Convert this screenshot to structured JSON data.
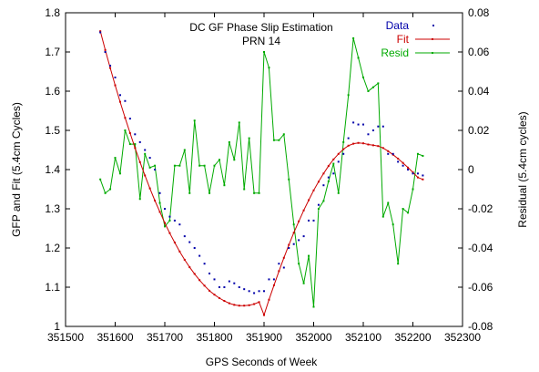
{
  "chart_data": {
    "type": "line",
    "title": "DC GF Phase Slip Estimation",
    "subtitle": "PRN 14",
    "xlabel": "GPS Seconds of Week",
    "ylabel": "GFP and Fit (5.4cm Cycles)",
    "y2label": "Residual (5.4cm cycles)",
    "xlim": [
      351500,
      352300
    ],
    "ylim": [
      1.0,
      1.8
    ],
    "y2lim": [
      -0.08,
      0.08
    ],
    "x_ticks": [
      "351500",
      "351600",
      "351700",
      "351800",
      "351900",
      "352000",
      "352100",
      "352200",
      "352300"
    ],
    "y_ticks": [
      "1",
      "1.1",
      "1.2",
      "1.3",
      "1.4",
      "1.5",
      "1.6",
      "1.7",
      "1.8"
    ],
    "y2_ticks": [
      "-0.08",
      "-0.06",
      "-0.04",
      "-0.02",
      "0",
      "0.02",
      "0.04",
      "0.06",
      "0.08"
    ],
    "grid": false,
    "legend_position": "top-right",
    "colors": {
      "data": "#0000aa",
      "fit": "#cc0000",
      "resid": "#00aa00"
    },
    "series": [
      {
        "name": "Data",
        "axis": "left",
        "style": "points",
        "x": [
          351570,
          351580,
          351590,
          351600,
          351610,
          351620,
          351630,
          351640,
          351650,
          351660,
          351670,
          351680,
          351690,
          351700,
          351710,
          351720,
          351730,
          351740,
          351750,
          351760,
          351770,
          351780,
          351790,
          351800,
          351810,
          351820,
          351830,
          351840,
          351850,
          351860,
          351870,
          351880,
          351890,
          351900,
          351910,
          351920,
          351930,
          351940,
          351950,
          351960,
          351970,
          351980,
          351990,
          352000,
          352010,
          352020,
          352030,
          352040,
          352050,
          352060,
          352070,
          352080,
          352090,
          352100,
          352110,
          352120,
          352130,
          352140,
          352150,
          352160,
          352170,
          352180,
          352190,
          352200,
          352210,
          352220
        ],
        "values": [
          1.75,
          1.7,
          1.665,
          1.635,
          1.59,
          1.575,
          1.53,
          1.49,
          1.47,
          1.45,
          1.43,
          1.4,
          1.34,
          1.3,
          1.28,
          1.27,
          1.26,
          1.23,
          1.215,
          1.2,
          1.18,
          1.16,
          1.135,
          1.12,
          1.1,
          1.1,
          1.115,
          1.11,
          1.1,
          1.095,
          1.09,
          1.085,
          1.09,
          1.09,
          1.12,
          1.12,
          1.16,
          1.15,
          1.2,
          1.21,
          1.22,
          1.23,
          1.27,
          1.27,
          1.31,
          1.36,
          1.38,
          1.39,
          1.42,
          1.44,
          1.48,
          1.52,
          1.515,
          1.515,
          1.49,
          1.5,
          1.51,
          1.51,
          1.44,
          1.44,
          1.42,
          1.41,
          1.4,
          1.39,
          1.39,
          1.385
        ]
      },
      {
        "name": "Fit",
        "axis": "left",
        "style": "line-points",
        "x": [
          351570,
          351580,
          351590,
          351600,
          351610,
          351620,
          351630,
          351640,
          351650,
          351660,
          351670,
          351680,
          351690,
          351700,
          351710,
          351720,
          351730,
          351740,
          351750,
          351760,
          351770,
          351780,
          351790,
          351800,
          351810,
          351820,
          351830,
          351840,
          351850,
          351860,
          351870,
          351880,
          351890,
          351900,
          351910,
          351920,
          351930,
          351940,
          351950,
          351960,
          351970,
          351980,
          351990,
          352000,
          352010,
          352020,
          352030,
          352040,
          352050,
          352060,
          352070,
          352080,
          352090,
          352100,
          352110,
          352120,
          352130,
          352140,
          352150,
          352160,
          352170,
          352180,
          352190,
          352200,
          352210,
          352220
        ],
        "values": [
          1.753,
          1.705,
          1.659,
          1.615,
          1.573,
          1.532,
          1.493,
          1.455,
          1.419,
          1.385,
          1.352,
          1.321,
          1.292,
          1.264,
          1.238,
          1.214,
          1.191,
          1.17,
          1.151,
          1.134,
          1.118,
          1.104,
          1.091,
          1.081,
          1.072,
          1.065,
          1.059,
          1.055,
          1.053,
          1.053,
          1.054,
          1.057,
          1.062,
          1.029,
          1.068,
          1.105,
          1.141,
          1.175,
          1.208,
          1.239,
          1.268,
          1.296,
          1.322,
          1.347,
          1.369,
          1.39,
          1.409,
          1.426,
          1.44,
          1.452,
          1.461,
          1.466,
          1.468,
          1.467,
          1.464,
          1.462,
          1.46,
          1.455,
          1.447,
          1.438,
          1.428,
          1.417,
          1.405,
          1.393,
          1.38,
          1.375
        ]
      },
      {
        "name": "Resid",
        "axis": "right",
        "style": "line-points",
        "x": [
          351570,
          351580,
          351590,
          351600,
          351610,
          351620,
          351630,
          351640,
          351650,
          351660,
          351670,
          351680,
          351690,
          351700,
          351710,
          351720,
          351730,
          351740,
          351750,
          351760,
          351770,
          351780,
          351790,
          351800,
          351810,
          351820,
          351830,
          351840,
          351850,
          351860,
          351870,
          351880,
          351890,
          351900,
          351910,
          351920,
          351930,
          351940,
          351950,
          351960,
          351970,
          351980,
          351990,
          352000,
          352010,
          352020,
          352030,
          352040,
          352050,
          352060,
          352070,
          352080,
          352090,
          352100,
          352110,
          352120,
          352130,
          352140,
          352150,
          352160,
          352170,
          352180,
          352190,
          352200,
          352210,
          352220
        ],
        "values": [
          -0.005,
          -0.012,
          -0.01,
          0.006,
          -0.002,
          0.02,
          0.013,
          0.013,
          -0.015,
          0.008,
          0.001,
          0.002,
          -0.017,
          -0.029,
          -0.026,
          0.002,
          0.002,
          0.01,
          -0.012,
          0.025,
          0.002,
          0.002,
          -0.012,
          0.002,
          0.005,
          -0.008,
          0.014,
          0.005,
          0.024,
          -0.01,
          0.016,
          -0.012,
          -0.012,
          0.06,
          0.052,
          0.015,
          0.015,
          0.018,
          -0.005,
          -0.028,
          -0.048,
          -0.058,
          -0.044,
          -0.07,
          -0.02,
          -0.016,
          -0.006,
          0.003,
          -0.012,
          0.014,
          0.038,
          0.067,
          0.057,
          0.047,
          0.04,
          0.042,
          0.044,
          -0.024,
          -0.017,
          -0.028,
          -0.048,
          -0.02,
          -0.022,
          -0.01,
          0.008,
          0.007
        ]
      }
    ]
  }
}
